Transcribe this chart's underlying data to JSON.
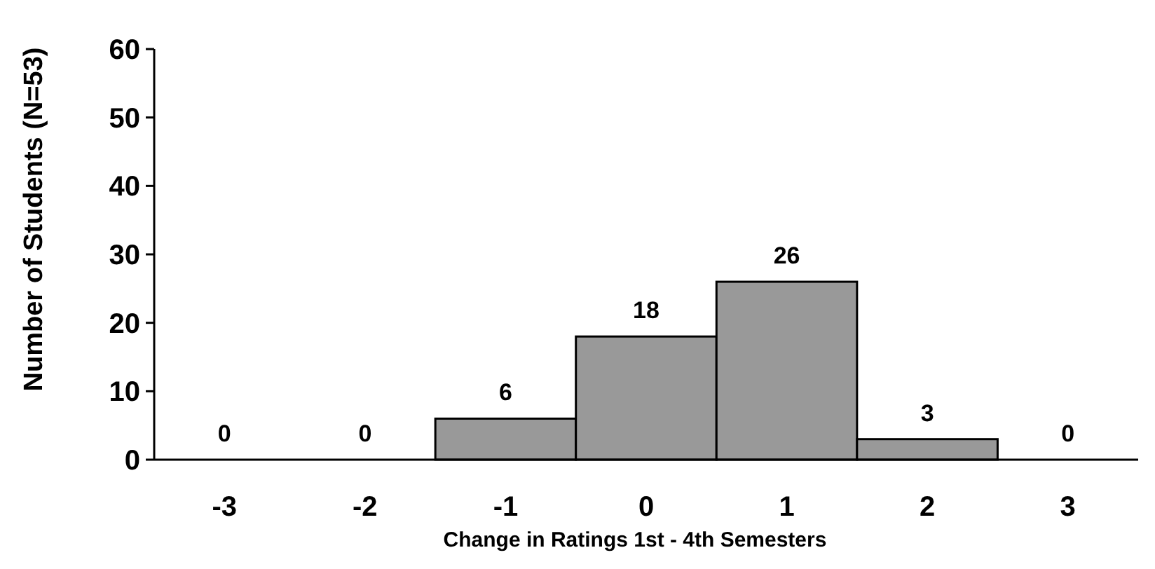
{
  "chart_data": {
    "type": "bar",
    "xlabel": "Change in Ratings 1st - 4th Semesters",
    "ylabel": "Number of Students (N=53)",
    "categories": [
      "-3",
      "-2",
      "-1",
      "0",
      "1",
      "2",
      "3"
    ],
    "values": [
      0,
      0,
      6,
      18,
      26,
      3,
      0
    ],
    "color": "#999999",
    "ylim": [
      0,
      60
    ],
    "yticks": [
      0,
      10,
      20,
      30,
      40,
      50,
      60
    ],
    "grid": false,
    "data_labels": true
  }
}
